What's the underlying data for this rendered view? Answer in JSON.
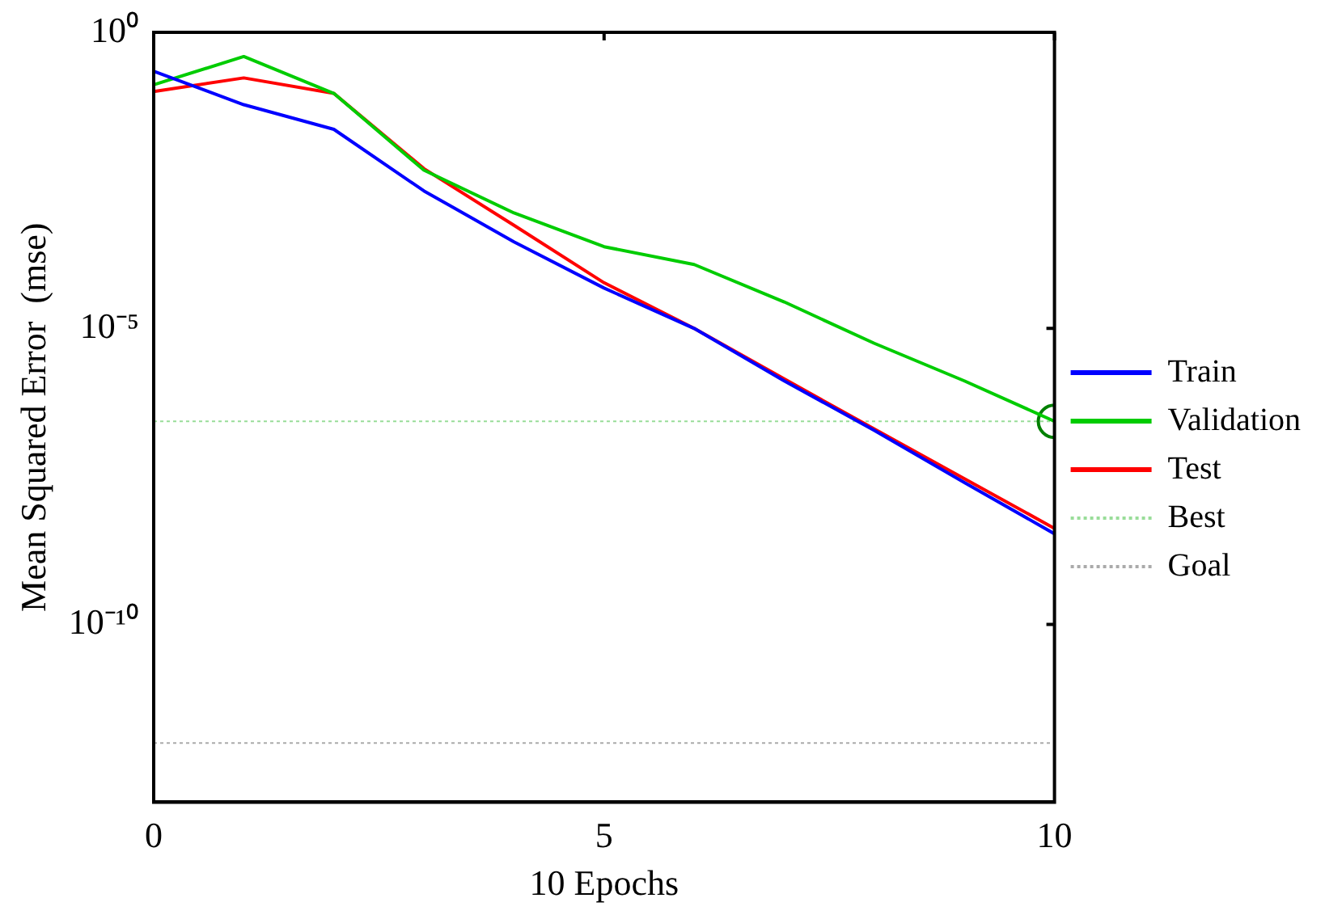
{
  "chart_data": {
    "type": "line",
    "xlabel": "10 Epochs",
    "ylabel": "Mean Squared Error  (mse)",
    "x": [
      0,
      1,
      2,
      3,
      4,
      5,
      6,
      7,
      8,
      9,
      10
    ],
    "series": [
      {
        "name": "Train",
        "color": "#0000ff",
        "values": [
          0.22,
          0.06,
          0.023,
          0.0021,
          0.00029,
          4.8e-05,
          1e-05,
          1.3e-06,
          1.9e-07,
          2.5e-08,
          3.4e-09
        ]
      },
      {
        "name": "Validation",
        "color": "#00cc00",
        "values": [
          0.13,
          0.39,
          0.093,
          0.0047,
          0.00089,
          0.00024,
          0.00012,
          2.8e-05,
          5.6e-06,
          1.3e-06,
          2.7e-07
        ]
      },
      {
        "name": "Test",
        "color": "#ff0000",
        "values": [
          0.1,
          0.17,
          0.093,
          0.005,
          0.00055,
          5.9e-05,
          1e-05,
          1.4e-06,
          2e-07,
          2.9e-08,
          4.2e-09
        ]
      },
      {
        "type": "scatter",
        "color": "#008000",
        "marker": "circle",
        "x": [
          10
        ],
        "values": [
          2.7e-07
        ]
      }
    ],
    "ref_lines": [
      {
        "axis": "y",
        "value": 2.7e-07,
        "label": "Best",
        "color": "#99dd99",
        "line_style": "dotted"
      },
      {
        "axis": "y",
        "value": 1e-12,
        "label": "Goal",
        "color": "#aaaaaa",
        "line_style": "dotted"
      }
    ],
    "xlim": [
      0,
      10
    ],
    "xticks": [
      0,
      5,
      10
    ],
    "ylim": [
      1e-13,
      1
    ],
    "yticks": [
      {
        "value": 1,
        "label": "10⁰"
      },
      {
        "value": 1e-05,
        "label": "10⁻⁵"
      },
      {
        "value": 1e-10,
        "label": "10⁻¹⁰"
      }
    ],
    "log": "y",
    "grid": false,
    "legend": "right",
    "marker": "none",
    "line_style": "solid"
  }
}
